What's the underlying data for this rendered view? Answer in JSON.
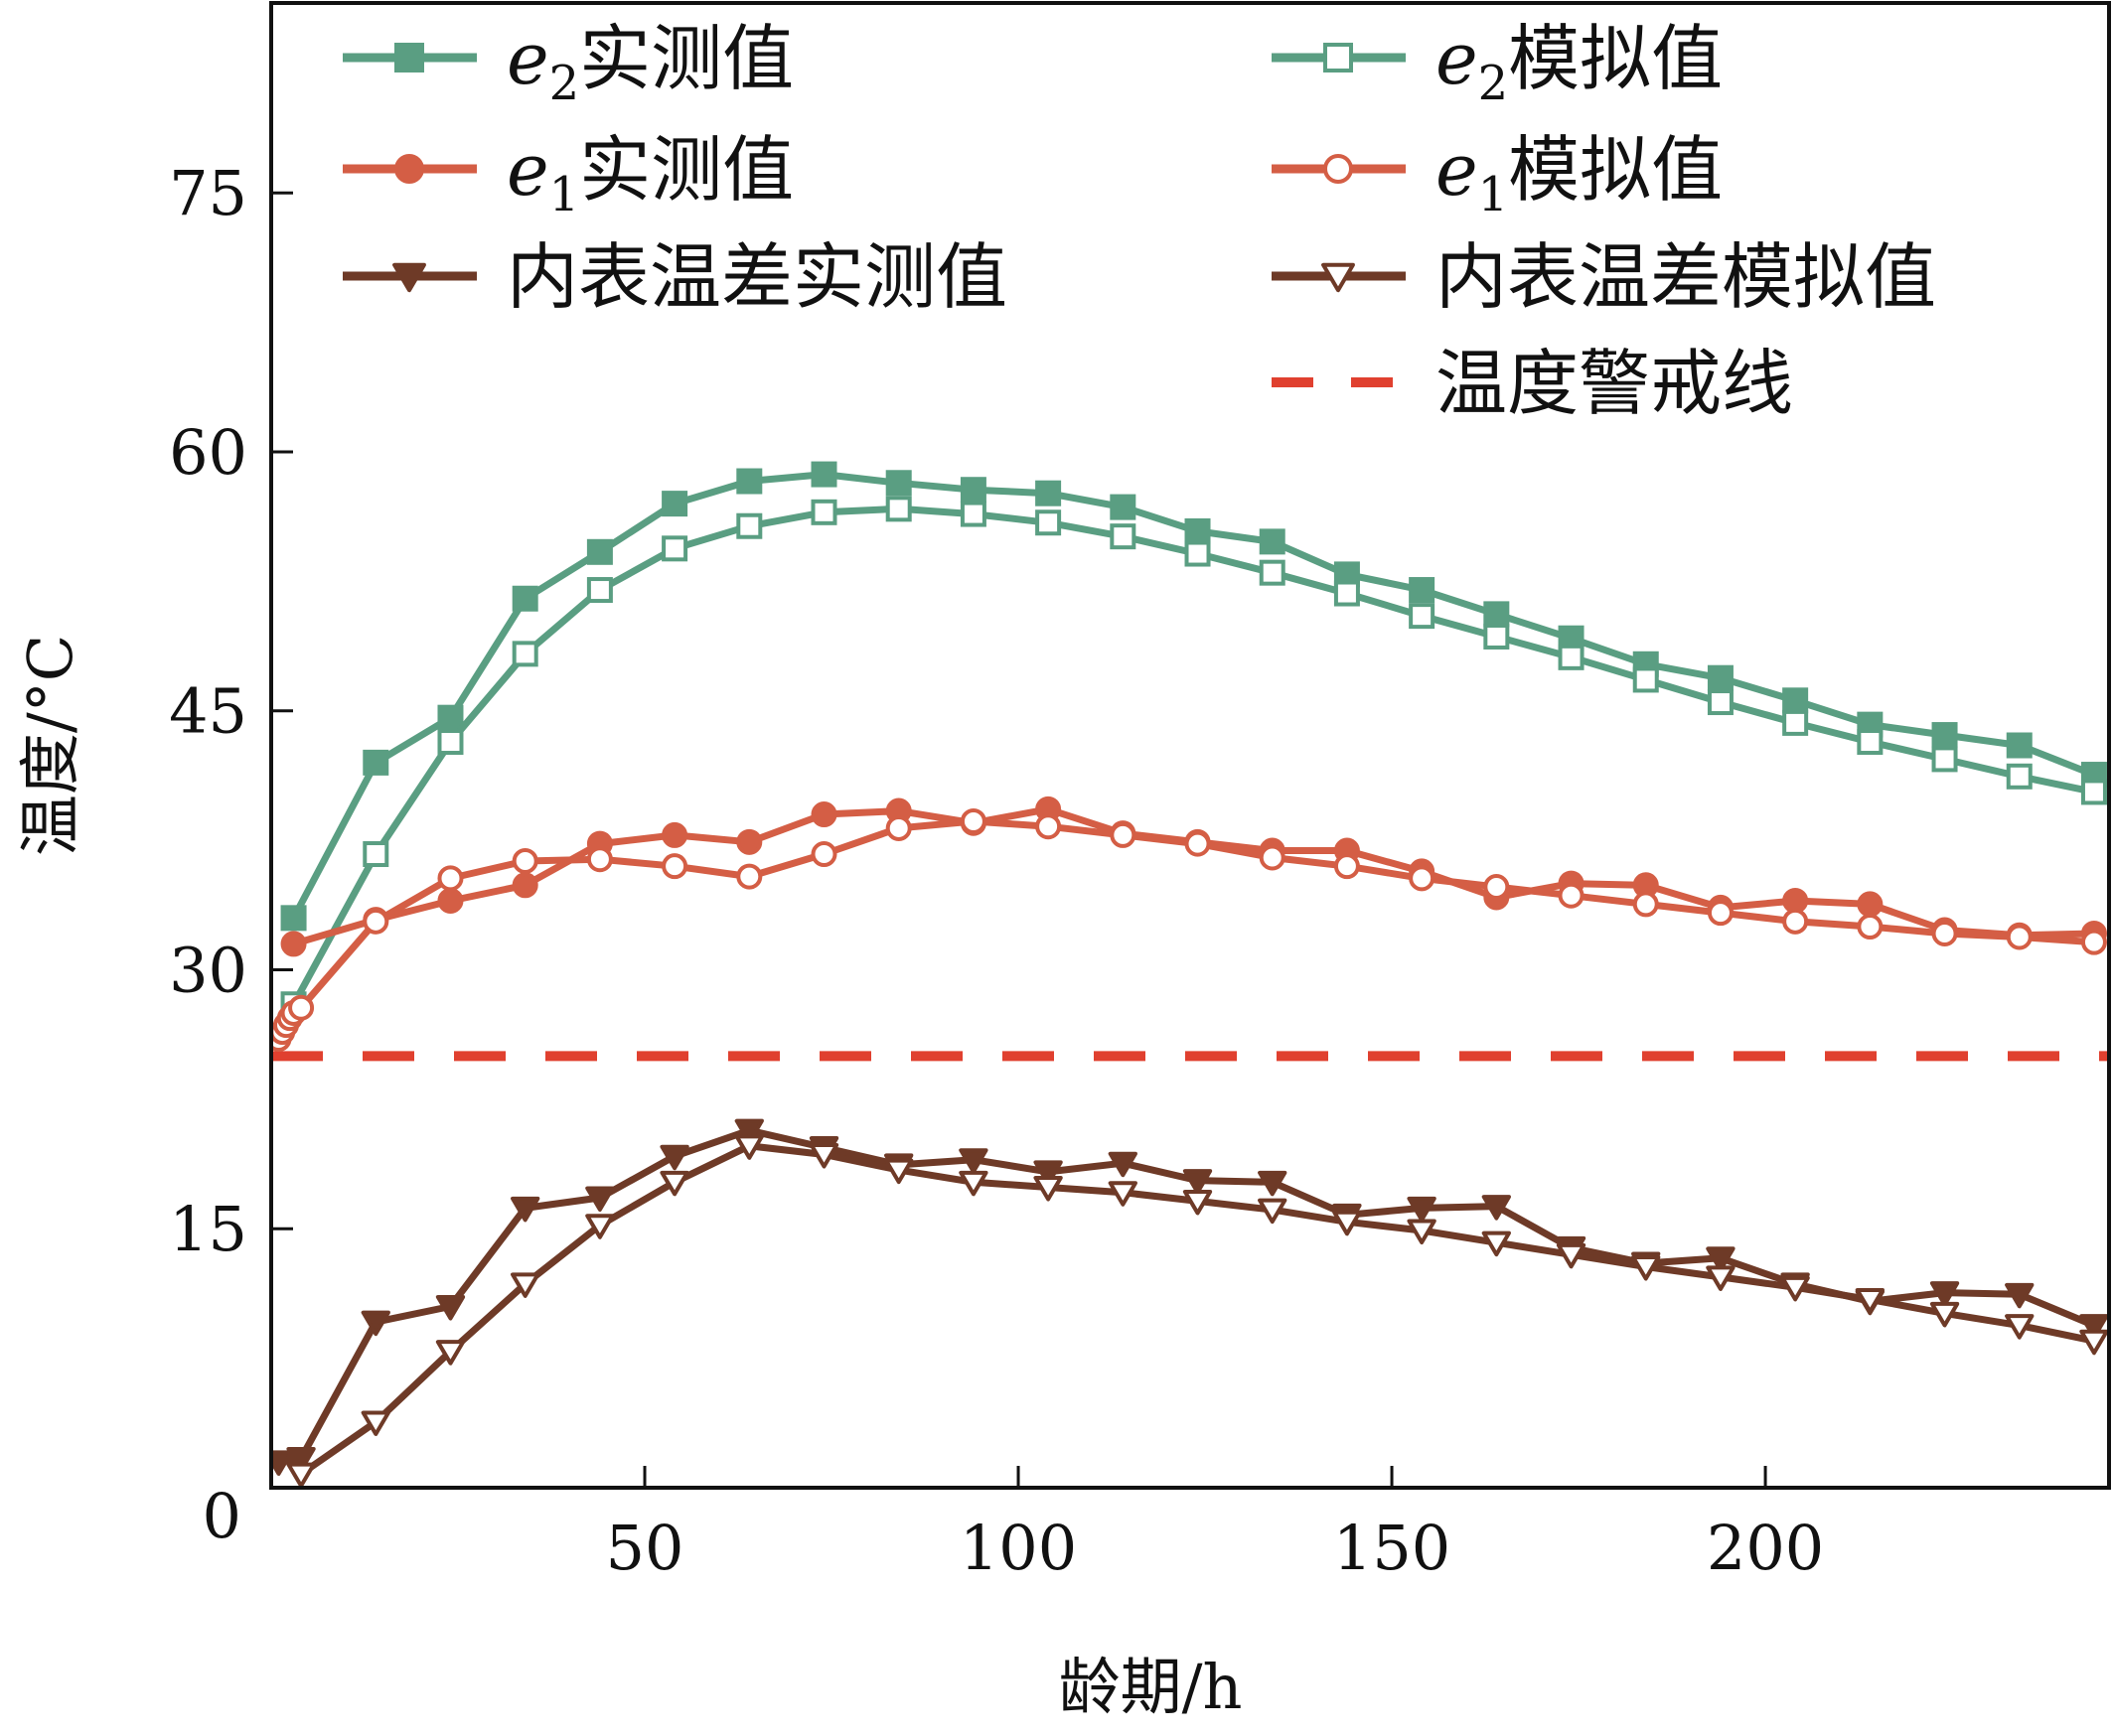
{
  "chart_data": {
    "type": "line",
    "xlabel": "龄期/h",
    "ylabel": "温度/°C",
    "xlim": [
      0,
      246
    ],
    "ylim": [
      0,
      86
    ],
    "xticks": [
      50,
      100,
      150,
      200
    ],
    "yticks": [
      15,
      30,
      45,
      60,
      75
    ],
    "origin_label": "0",
    "grid": false,
    "legend_position": "top",
    "warning_line": {
      "name": "温度警戒线",
      "y": 25,
      "color": "#e0402f"
    },
    "series": [
      {
        "name": "e2实测值",
        "name_italic": "e",
        "name_sub": "2",
        "name_rest": "实测值",
        "color": "#5a9e82",
        "marker": "square",
        "filled": true,
        "x": [
          3,
          14,
          24,
          34,
          44,
          54,
          64,
          74,
          84,
          94,
          104,
          114,
          124,
          134,
          144,
          154,
          164,
          174,
          184,
          194,
          204,
          214,
          224,
          234,
          244
        ],
        "y": [
          33,
          42,
          44.6,
          51.5,
          54.2,
          57,
          58.3,
          58.7,
          58.2,
          57.8,
          57.6,
          56.8,
          55.4,
          54.8,
          52.9,
          52,
          50.6,
          49.2,
          47.7,
          46.9,
          45.6,
          44.2,
          43.6,
          43,
          41.3
        ]
      },
      {
        "name": "e2模拟值",
        "name_italic": "e",
        "name_sub": "2",
        "name_rest": "模拟值",
        "color": "#5a9e82",
        "marker": "square",
        "filled": false,
        "x": [
          3,
          14,
          24,
          34,
          44,
          54,
          64,
          74,
          84,
          94,
          104,
          114,
          124,
          134,
          144,
          154,
          164,
          174,
          184,
          194,
          204,
          214,
          224,
          234,
          244
        ],
        "y": [
          28,
          36.7,
          43.2,
          48.3,
          52,
          54.4,
          55.7,
          56.5,
          56.7,
          56.4,
          55.9,
          55.1,
          54.1,
          53,
          51.8,
          50.5,
          49.3,
          48.1,
          46.8,
          45.5,
          44.3,
          43.2,
          42.2,
          41.2,
          40.3
        ]
      },
      {
        "name": "e1实测值",
        "name_italic": "e",
        "name_sub": "1",
        "name_rest": "实测值",
        "color": "#d45e45",
        "marker": "circle",
        "filled": true,
        "x": [
          3,
          14,
          24,
          34,
          44,
          54,
          64,
          74,
          84,
          94,
          104,
          114,
          124,
          134,
          144,
          154,
          164,
          174,
          184,
          194,
          204,
          214,
          224,
          234,
          244
        ],
        "y": [
          31.5,
          32.9,
          34,
          34.9,
          37.3,
          37.8,
          37.4,
          39,
          39.2,
          38.5,
          39.3,
          37.9,
          37.4,
          36.9,
          36.9,
          35.7,
          34.2,
          35,
          34.9,
          33.6,
          34,
          33.8,
          32.3,
          32,
          32.1
        ]
      },
      {
        "name": "e1模拟值",
        "name_italic": "e",
        "name_sub": "1",
        "name_rest": "模拟值",
        "color": "#d45e45",
        "marker": "circle",
        "filled": false,
        "x": [
          1,
          1.5,
          2,
          2.5,
          3,
          4,
          14,
          24,
          34,
          44,
          54,
          64,
          74,
          84,
          94,
          104,
          114,
          124,
          134,
          144,
          154,
          164,
          174,
          184,
          194,
          204,
          214,
          224,
          234,
          244
        ],
        "y": [
          26,
          26.4,
          26.8,
          27.2,
          27.5,
          27.8,
          32.8,
          35.3,
          36.3,
          36.4,
          36,
          35.4,
          36.7,
          38.2,
          38.6,
          38.3,
          37.8,
          37.3,
          36.5,
          36,
          35.3,
          34.8,
          34.3,
          33.8,
          33.3,
          32.8,
          32.5,
          32.1,
          31.9,
          31.6
        ]
      },
      {
        "name": "内表温差实测值",
        "name_italic": "",
        "name_sub": "",
        "name_rest": "内表温差实测值",
        "color": "#6e3a27",
        "marker": "triangle-down",
        "filled": true,
        "x": [
          1,
          4,
          14,
          24,
          34,
          44,
          54,
          64,
          74,
          84,
          94,
          104,
          114,
          124,
          134,
          144,
          154,
          164,
          174,
          184,
          194,
          204,
          214,
          224,
          234,
          244
        ],
        "y": [
          1.5,
          1.7,
          9.6,
          10.5,
          16.2,
          16.8,
          19.2,
          20.7,
          19.7,
          18.7,
          19,
          18.3,
          18.8,
          17.8,
          17.7,
          15.8,
          16.2,
          16.3,
          13.9,
          13,
          13.3,
          11.8,
          10.8,
          11.3,
          11.2,
          9.4
        ]
      },
      {
        "name": "内表温差模拟值",
        "name_italic": "",
        "name_sub": "",
        "name_rest": "内表温差模拟值",
        "color": "#6e3a27",
        "marker": "triangle-down",
        "filled": false,
        "x": [
          4,
          14,
          24,
          34,
          44,
          54,
          64,
          74,
          84,
          94,
          104,
          114,
          124,
          134,
          144,
          154,
          164,
          174,
          184,
          194,
          204,
          214,
          224,
          234,
          244
        ],
        "y": [
          0.8,
          3.8,
          7.9,
          11.8,
          15.2,
          17.7,
          19.8,
          19.3,
          18.4,
          17.7,
          17.4,
          17.1,
          16.6,
          16.1,
          15.4,
          14.9,
          14.2,
          13.5,
          12.8,
          12.2,
          11.6,
          10.9,
          10.1,
          9.4,
          8.5
        ]
      }
    ]
  }
}
